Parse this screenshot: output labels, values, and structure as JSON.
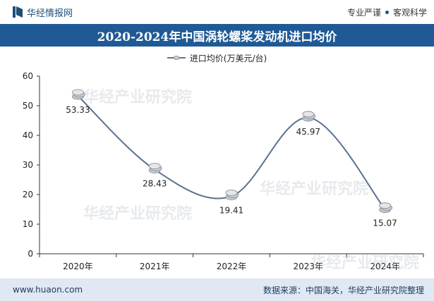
{
  "header": {
    "brand_name": "华经情报网",
    "tagline_left": "专业严谨",
    "tagline_right": "客观科学"
  },
  "chart_data": {
    "type": "line",
    "title": "2020-2024年中国涡轮螺桨发动机进口均价",
    "categories": [
      "2020年",
      "2021年",
      "2022年",
      "2023年",
      "2024年"
    ],
    "series": [
      {
        "name": "进口均价(万美元/台)",
        "values": [
          53.33,
          28.43,
          19.41,
          45.97,
          15.07
        ]
      }
    ],
    "data_labels": [
      "53.33",
      "28.43",
      "19.41",
      "45.97",
      "15.07"
    ],
    "ylim": [
      0,
      60
    ],
    "yticks": [
      0,
      10,
      20,
      30,
      40,
      50,
      60
    ],
    "ytick_labels": [
      "0",
      "10",
      "20",
      "30",
      "40",
      "50",
      "60"
    ],
    "xlabel": "",
    "ylabel": "",
    "legend_position": "top-center",
    "grid": false,
    "line_color": "#5b7390",
    "marker_style": "coin-stack"
  },
  "footer": {
    "website": "www.huaon.com",
    "source": "数据来源：中国海关，华经产业研究院整理"
  },
  "colors": {
    "title_band": "#1f5a96",
    "footer_band": "#dfe8f3",
    "brand": "#1f4e79"
  }
}
